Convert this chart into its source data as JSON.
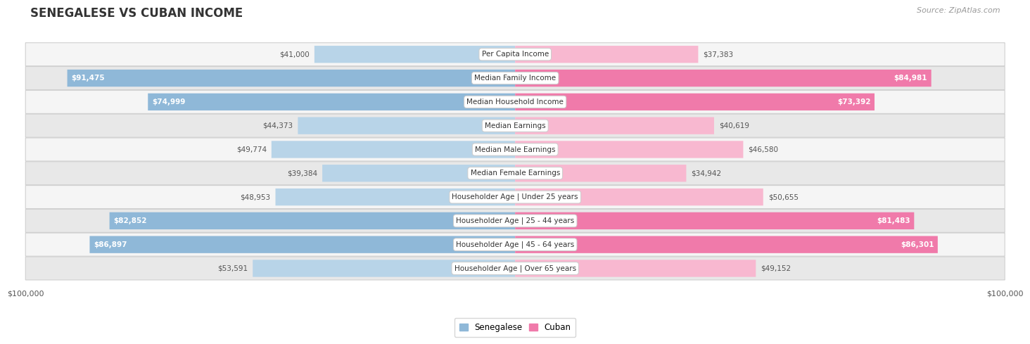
{
  "title": "SENEGALESE VS CUBAN INCOME",
  "source": "Source: ZipAtlas.com",
  "categories": [
    "Per Capita Income",
    "Median Family Income",
    "Median Household Income",
    "Median Earnings",
    "Median Male Earnings",
    "Median Female Earnings",
    "Householder Age | Under 25 years",
    "Householder Age | 25 - 44 years",
    "Householder Age | 45 - 64 years",
    "Householder Age | Over 65 years"
  ],
  "senegalese_values": [
    41000,
    91475,
    74999,
    44373,
    49774,
    39384,
    48953,
    82852,
    86897,
    53591
  ],
  "cuban_values": [
    37383,
    84981,
    73392,
    40619,
    46580,
    34942,
    50655,
    81483,
    86301,
    49152
  ],
  "senegalese_labels": [
    "$41,000",
    "$91,475",
    "$74,999",
    "$44,373",
    "$49,774",
    "$39,384",
    "$48,953",
    "$82,852",
    "$86,897",
    "$53,591"
  ],
  "cuban_labels": [
    "$37,383",
    "$84,981",
    "$73,392",
    "$40,619",
    "$46,580",
    "$34,942",
    "$50,655",
    "$81,483",
    "$86,301",
    "$49,152"
  ],
  "max_value": 100000,
  "senegalese_color": "#8fb8d8",
  "cuban_color": "#f07aaa",
  "senegalese_light_color": "#b8d4e8",
  "cuban_light_color": "#f8b8d0",
  "bg_color": "#ffffff",
  "row_bg_even": "#f5f5f5",
  "row_bg_odd": "#e8e8e8",
  "row_border_color": "#d0d0d0",
  "label_inside_threshold": 65000,
  "legend_senegalese": "Senegalese",
  "legend_cuban": "Cuban",
  "title_color": "#333333",
  "source_color": "#999999",
  "outside_label_color": "#555555",
  "inside_label_color": "#ffffff"
}
